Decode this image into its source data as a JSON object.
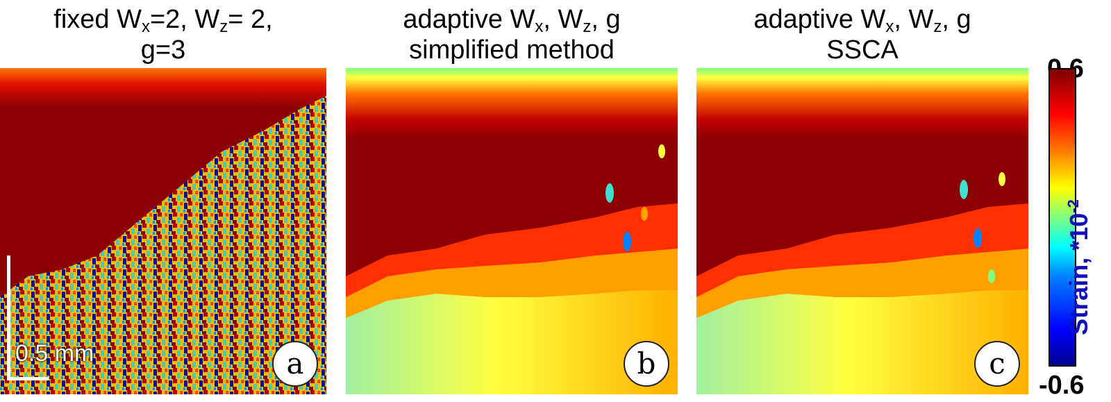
{
  "panels": [
    {
      "title_line1_prefix": "fixed W",
      "sub1": "x",
      "title_line1_mid": "=2, W",
      "sub2": "z",
      "title_line1_suffix": "= 2,",
      "title_line2": "g=3",
      "badge": "a"
    },
    {
      "title_line1_prefix": "adaptive W",
      "sub1": "x",
      "title_line1_mid": ", W",
      "sub2": "z",
      "title_line1_suffix": ", g",
      "title_line2": "simplified method",
      "badge": "b"
    },
    {
      "title_line1_prefix": "adaptive W",
      "sub1": "x",
      "title_line1_mid": ", W",
      "sub2": "z",
      "title_line1_suffix": ", g",
      "title_line2": "SSCA",
      "badge": "c"
    }
  ],
  "scale_bar": {
    "label": "0.5 mm"
  },
  "colorbar": {
    "max_label": "0.6",
    "min_label": "-0.6",
    "label_prefix": "Strain, *10",
    "label_exp": "-2",
    "colormap": [
      "#00008f",
      "#0000ff",
      "#0080ff",
      "#00ffff",
      "#80ff80",
      "#ffff00",
      "#ff8000",
      "#ff0000",
      "#800000"
    ]
  },
  "colors": {
    "dark_red": "#8b0000",
    "red": "#ff1a00",
    "orange": "#ff8a00",
    "yellow": "#ffff30",
    "cyan": "#40e0d0",
    "blue": "#0000c8"
  }
}
